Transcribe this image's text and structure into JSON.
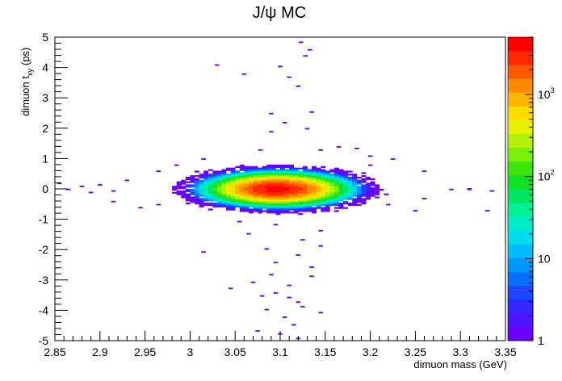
{
  "chart_data": {
    "type": "heatmap",
    "title": "J/ψ MC",
    "xlabel": "dimuon mass (GeV)",
    "ylabel_main": "dimuon t",
    "ylabel_sub": "xy",
    "ylabel_unit": "(ps)",
    "xlim": [
      2.85,
      3.35
    ],
    "ylim": [
      -5,
      5
    ],
    "x_ticks": [
      "2.85",
      "2.9",
      "2.95",
      "3",
      "3.05",
      "3.1",
      "3.15",
      "3.2",
      "3.25",
      "3.3",
      "3.35"
    ],
    "y_ticks": [
      "-5",
      "-4",
      "-3",
      "-2",
      "-1",
      "0",
      "1",
      "2",
      "3",
      "4",
      "5"
    ],
    "z_scale": "log",
    "zlim": [
      1,
      5000
    ],
    "z_ticks": [
      {
        "base": "1",
        "exp": ""
      },
      {
        "base": "10",
        "exp": ""
      },
      {
        "base": "10",
        "exp": "2"
      },
      {
        "base": "10",
        "exp": "3"
      }
    ],
    "palette": [
      "#6a00ff",
      "#4c14ff",
      "#3328ff",
      "#1e46ff",
      "#0a6eff",
      "#0096ff",
      "#00bcff",
      "#00dcef",
      "#00ecc8",
      "#00f096",
      "#00e664",
      "#10e028",
      "#3ce60a",
      "#78f00a",
      "#b4f00a",
      "#e6f000",
      "#ffdc00",
      "#ffb400",
      "#ff8c00",
      "#ff5a00",
      "#ff2800",
      "#ff0000"
    ],
    "core": {
      "x_center": 3.097,
      "y_center": 0.0,
      "sigma_mass": 0.026,
      "sigma_t": 0.18,
      "peak_count": 4000
    },
    "tails": [
      [
        3.123,
        4.83
      ],
      [
        3.133,
        4.58
      ],
      [
        3.128,
        4.38
      ],
      [
        3.03,
        4.08
      ],
      [
        3.1,
        4.03
      ],
      [
        3.06,
        3.78
      ],
      [
        3.11,
        3.68
      ],
      [
        3.12,
        3.38
      ],
      [
        3.135,
        2.53
      ],
      [
        3.09,
        2.48
      ],
      [
        3.105,
        2.18
      ],
      [
        3.13,
        1.98
      ],
      [
        3.09,
        1.88
      ],
      [
        3.078,
        1.28
      ],
      [
        3.165,
        1.38
      ],
      [
        3.145,
        1.28
      ],
      [
        3.185,
        1.33
      ],
      [
        3.2,
        1.08
      ],
      [
        3.225,
        0.98
      ],
      [
        3.2,
        0.78
      ],
      [
        3.26,
        0.58
      ],
      [
        3.015,
        0.98
      ],
      [
        2.985,
        0.78
      ],
      [
        2.965,
        0.58
      ],
      [
        3.29,
        -0.02
      ],
      [
        3.31,
        0.0
      ],
      [
        3.31,
        -0.02
      ],
      [
        3.335,
        -0.07
      ],
      [
        3.33,
        -0.72
      ],
      [
        3.26,
        -0.32
      ],
      [
        3.22,
        -0.52
      ],
      [
        3.25,
        -0.72
      ],
      [
        2.855,
        0.18
      ],
      [
        2.865,
        -0.02
      ],
      [
        2.88,
        0.08
      ],
      [
        2.89,
        -0.12
      ],
      [
        2.9,
        0.13
      ],
      [
        2.915,
        -0.07
      ],
      [
        2.93,
        0.28
      ],
      [
        2.915,
        -0.42
      ],
      [
        2.945,
        -0.62
      ],
      [
        2.965,
        -0.52
      ],
      [
        3.055,
        -1.08
      ],
      [
        3.095,
        -1.18
      ],
      [
        3.145,
        -1.38
      ],
      [
        3.065,
        -1.48
      ],
      [
        3.125,
        -1.68
      ],
      [
        3.085,
        -1.98
      ],
      [
        3.145,
        -1.88
      ],
      [
        3.015,
        -2.08
      ],
      [
        3.12,
        -2.18
      ],
      [
        3.095,
        -2.43
      ],
      [
        3.135,
        -2.58
      ],
      [
        3.09,
        -2.83
      ],
      [
        3.135,
        -2.88
      ],
      [
        3.07,
        -3.08
      ],
      [
        3.11,
        -3.18
      ],
      [
        3.095,
        -3.43
      ],
      [
        3.045,
        -3.28
      ],
      [
        3.08,
        -3.53
      ],
      [
        3.11,
        -3.58
      ],
      [
        3.12,
        -3.73
      ],
      [
        3.125,
        -3.88
      ],
      [
        3.085,
        -3.98
      ],
      [
        3.145,
        -4.08
      ],
      [
        3.105,
        -4.23
      ],
      [
        3.115,
        -4.48
      ],
      [
        3.075,
        -4.68
      ],
      [
        3.1,
        -4.78
      ],
      [
        3.12,
        -4.93
      ]
    ]
  }
}
